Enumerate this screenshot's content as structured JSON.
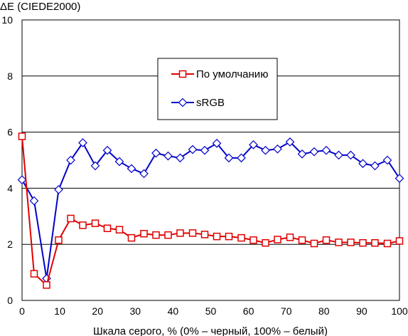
{
  "chart_data": {
    "type": "line",
    "title": "",
    "ylabel": "ΔE (CIEDE2000)",
    "xlabel": "Шкала серого, % (0% – черный, 100% – белый)",
    "xlim": [
      0,
      100
    ],
    "ylim": [
      0,
      10
    ],
    "xticks": [
      0,
      10,
      20,
      30,
      40,
      50,
      60,
      70,
      80,
      90,
      100
    ],
    "yticks": [
      0,
      2,
      4,
      6,
      8,
      10
    ],
    "grid": "horizontal",
    "legend_position": "upper-center",
    "x": [
      0,
      3.2,
      6.5,
      9.7,
      12.9,
      16.1,
      19.4,
      22.6,
      25.8,
      29.0,
      32.3,
      35.5,
      38.7,
      41.9,
      45.2,
      48.4,
      51.6,
      54.8,
      58.1,
      61.3,
      64.5,
      67.7,
      71.0,
      74.2,
      77.4,
      80.6,
      83.9,
      87.1,
      90.3,
      93.5,
      96.8,
      100
    ],
    "series": [
      {
        "name": "По умолчанию",
        "color": "#e00000",
        "marker": "square",
        "values": [
          5.85,
          0.95,
          0.55,
          2.15,
          2.92,
          2.68,
          2.75,
          2.57,
          2.52,
          2.23,
          2.38,
          2.33,
          2.33,
          2.4,
          2.4,
          2.35,
          2.28,
          2.28,
          2.23,
          2.15,
          2.05,
          2.17,
          2.25,
          2.15,
          2.03,
          2.15,
          2.07,
          2.07,
          2.05,
          2.05,
          2.03,
          2.12
        ]
      },
      {
        "name": "sRGB",
        "color": "#0000c8",
        "marker": "diamond",
        "values": [
          4.3,
          3.55,
          0.78,
          3.95,
          5.0,
          5.62,
          4.8,
          5.35,
          4.95,
          4.7,
          4.52,
          5.25,
          5.15,
          5.08,
          5.38,
          5.35,
          5.6,
          5.08,
          5.08,
          5.55,
          5.35,
          5.4,
          5.65,
          5.22,
          5.3,
          5.35,
          5.18,
          5.18,
          4.88,
          4.8,
          5.0,
          4.35
        ]
      }
    ]
  }
}
